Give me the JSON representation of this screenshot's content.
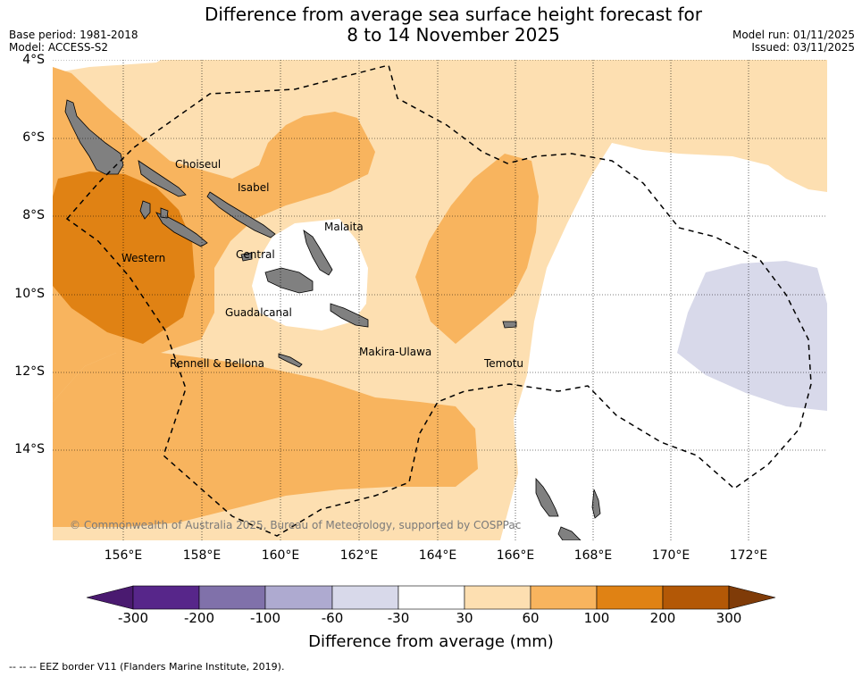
{
  "title": {
    "line1": "Difference from average sea surface height forecast for",
    "line2": "8 to 14 November 2025"
  },
  "meta": {
    "base_period": "Base period: 1981-2018",
    "model": "Model: ACCESS-S2",
    "model_run": "Model run: 01/11/2025",
    "issued": "Issued: 03/11/2025"
  },
  "map": {
    "lat_labels": [
      "4°S",
      "6°S",
      "8°S",
      "10°S",
      "12°S",
      "14°S"
    ],
    "lon_labels": [
      "156°E",
      "158°E",
      "160°E",
      "162°E",
      "164°E",
      "166°E",
      "168°E",
      "170°E",
      "172°E"
    ],
    "regions": [
      "Choiseul",
      "Isabel",
      "Malaita",
      "Western",
      "Central",
      "Guadalcanal",
      "Rennell & Bellona",
      "Makira-Ulawa",
      "Temotu"
    ],
    "copyright": "© Commonwealth of Australia 2025, Bureau of Meteorology, supported by COSPPac"
  },
  "colorbar": {
    "label": "Difference from average (mm)",
    "ticks": [
      "-300",
      "-200",
      "-100",
      "-60",
      "-30",
      "30",
      "60",
      "100",
      "200",
      "300"
    ],
    "colors": [
      "#4a1a70",
      "#57268a",
      "#8071aa",
      "#aeaad0",
      "#d8d9ea",
      "#ffffff",
      "#fddfb1",
      "#f8b45e",
      "#e08214",
      "#b35806",
      "#7f3b08"
    ]
  },
  "footnote": "--  --  -- EEZ border V11 (Flanders Marine Institute, 2019)."
}
